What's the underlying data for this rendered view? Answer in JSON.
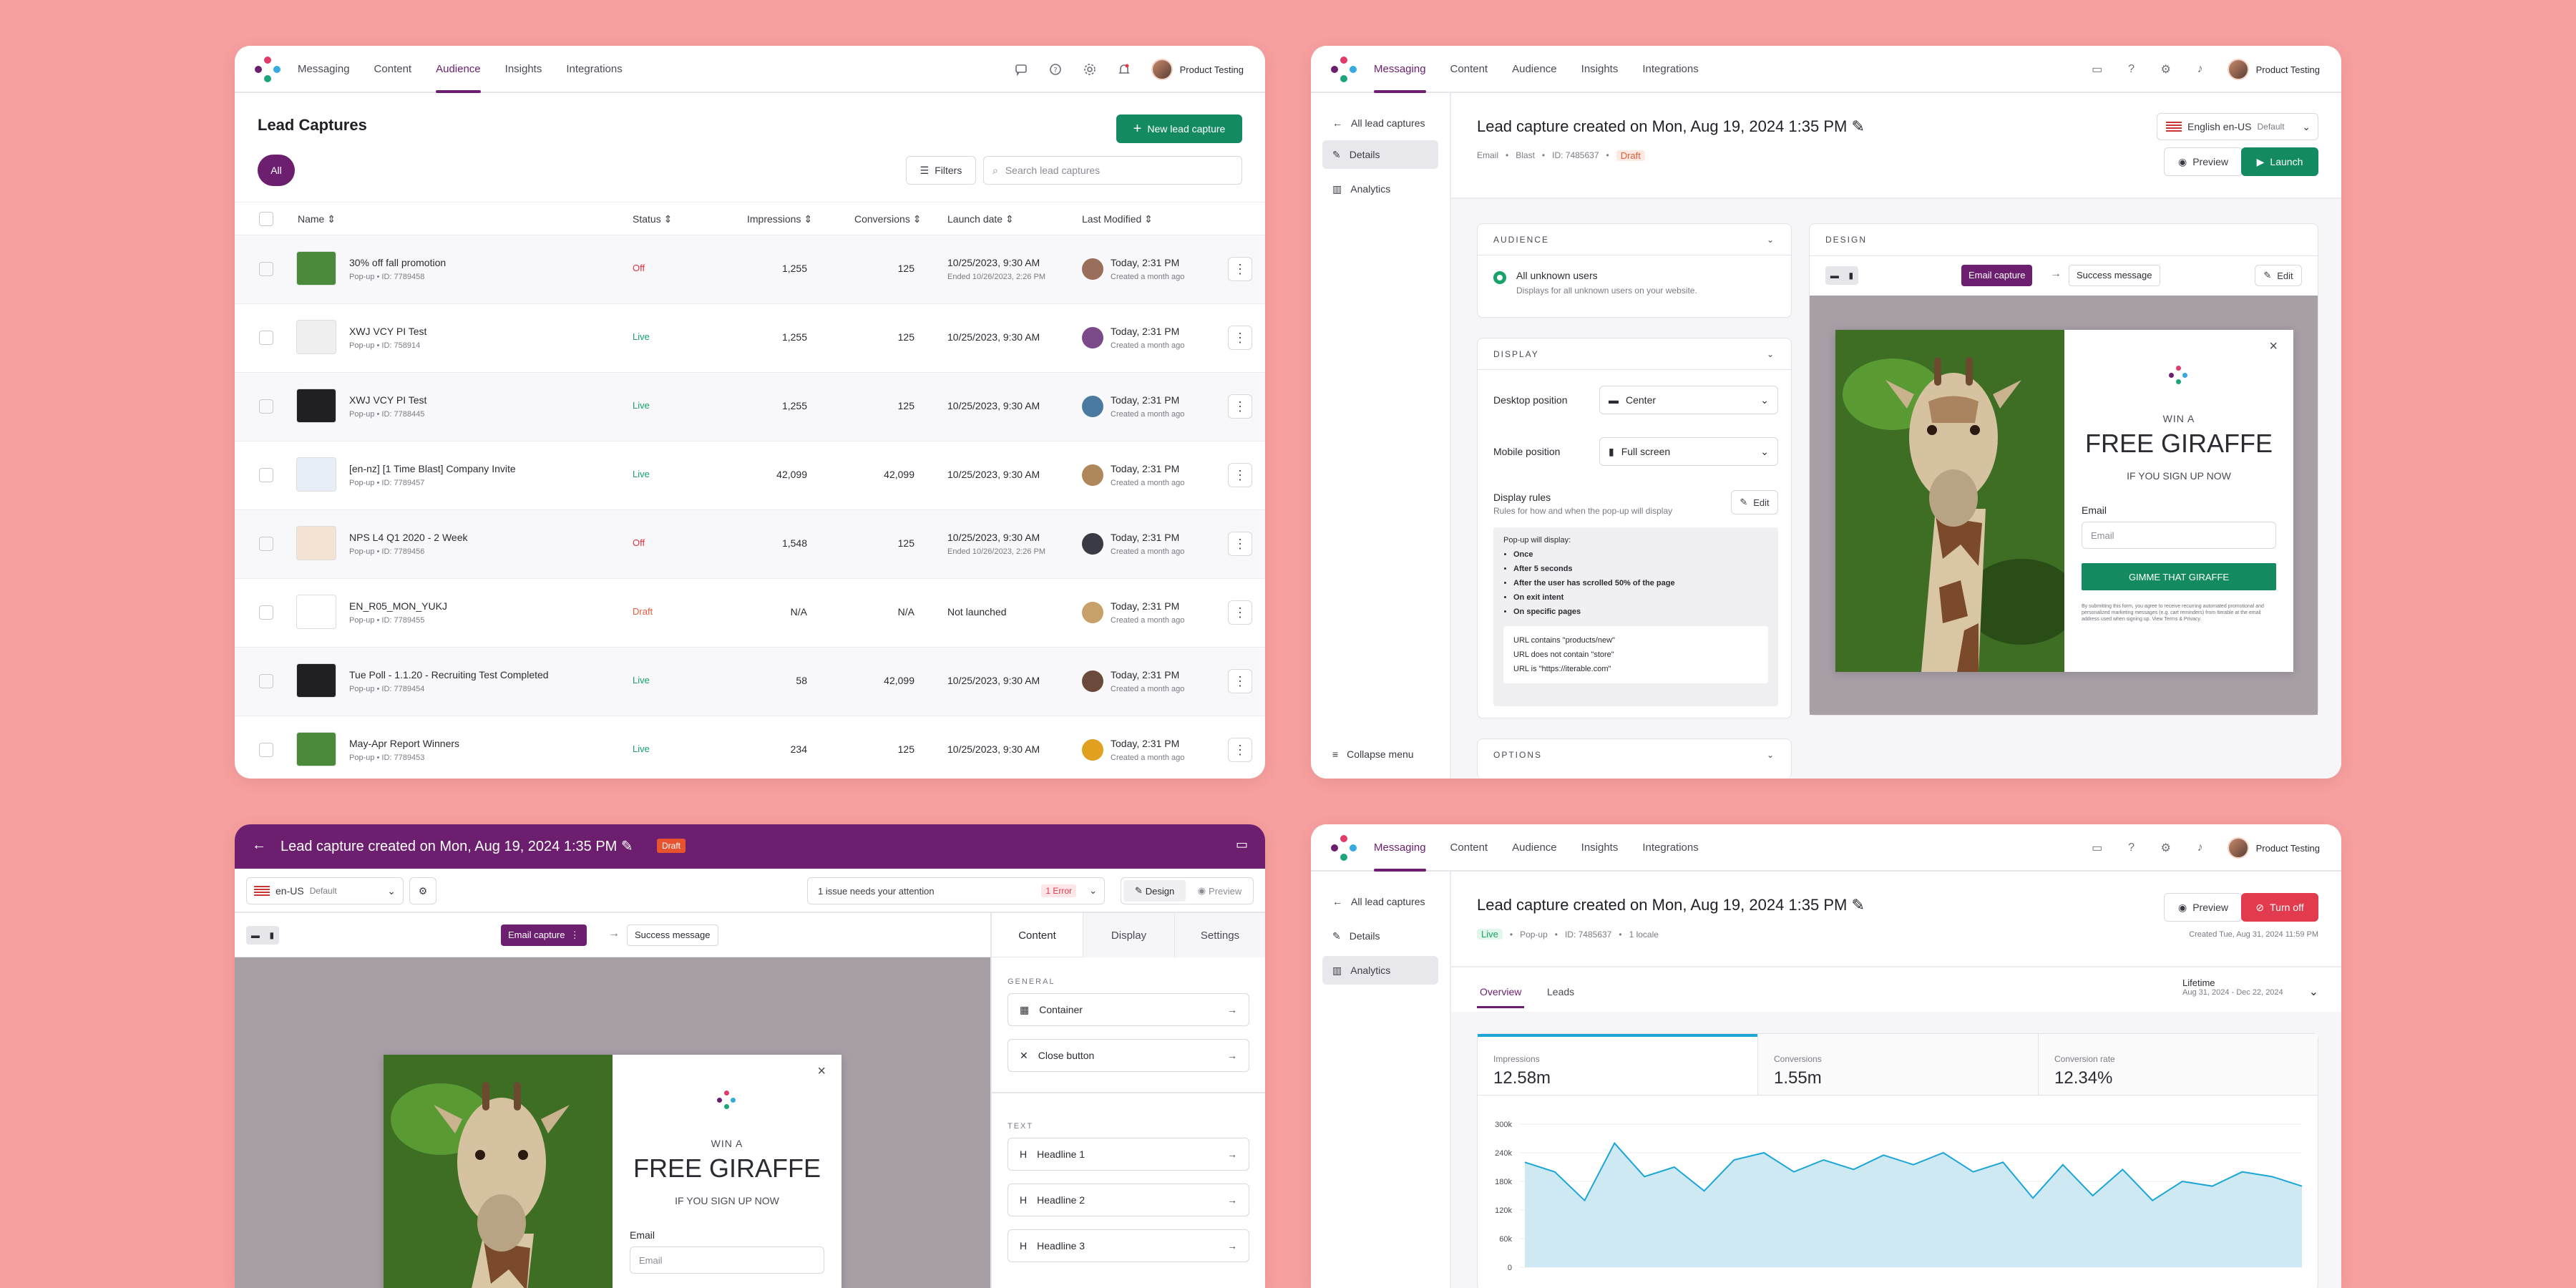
{
  "nav": {
    "items": [
      "Messaging",
      "Content",
      "Audience",
      "Insights",
      "Integrations"
    ],
    "user": "Product Testing"
  },
  "p1": {
    "title": "Lead Captures",
    "new_button": "New lead capture",
    "all_pill": "All",
    "filters": "Filters",
    "search_placeholder": "Search lead captures",
    "headers": [
      "Name",
      "Status",
      "Impressions",
      "Conversions",
      "Launch date",
      "Last Modified"
    ],
    "rows": [
      {
        "name": "30% off fall promotion",
        "sub": "Pop-up • ID: 7789458",
        "status": "Off",
        "imp": "1,255",
        "conv": "125",
        "launch": "10/25/2023, 9:30 AM",
        "ended": "Ended 10/26/2023, 2:26 PM",
        "mod": "Today, 2:31 PM",
        "created": "Created a month ago"
      },
      {
        "name": "XWJ VCY PI Test",
        "sub": "Pop-up • ID: 758914",
        "status": "Live",
        "imp": "1,255",
        "conv": "125",
        "launch": "10/25/2023, 9:30 AM",
        "ended": "",
        "mod": "Today, 2:31 PM",
        "created": "Created a month ago"
      },
      {
        "name": "XWJ VCY PI Test",
        "sub": "Pop-up • ID: 7788445",
        "status": "Live",
        "imp": "1,255",
        "conv": "125",
        "launch": "10/25/2023, 9:30 AM",
        "ended": "",
        "mod": "Today, 2:31 PM",
        "created": "Created a month ago"
      },
      {
        "name": "[en-nz] [1 Time Blast] Company Invite",
        "sub": "Pop-up • ID: 7789457",
        "status": "Live",
        "imp": "42,099",
        "conv": "42,099",
        "launch": "10/25/2023, 9:30 AM",
        "ended": "",
        "mod": "Today, 2:31 PM",
        "created": "Created a month ago"
      },
      {
        "name": "NPS L4 Q1 2020 - 2 Week",
        "sub": "Pop-up • ID: 7789456",
        "status": "Off",
        "imp": "1,548",
        "conv": "125",
        "launch": "10/25/2023, 9:30 AM",
        "ended": "Ended 10/26/2023, 2:26 PM",
        "mod": "Today, 2:31 PM",
        "created": "Created a month ago"
      },
      {
        "name": "EN_R05_MON_YUKJ",
        "sub": "Pop-up • ID: 7789455",
        "status": "Draft",
        "imp": "N/A",
        "conv": "N/A",
        "launch": "Not launched",
        "ended": "",
        "mod": "Today, 2:31 PM",
        "created": "Created a month ago"
      },
      {
        "name": "Tue Poll - 1.1.20 - Recruiting Test Completed",
        "sub": "Pop-up • ID: 7789454",
        "status": "Live",
        "imp": "58",
        "conv": "42,099",
        "launch": "10/25/2023, 9:30 AM",
        "ended": "",
        "mod": "Today, 2:31 PM",
        "created": "Created a month ago"
      },
      {
        "name": "May-Apr Report Winners",
        "sub": "Pop-up • ID: 7789453",
        "status": "Live",
        "imp": "234",
        "conv": "125",
        "launch": "10/25/2023, 9:30 AM",
        "ended": "",
        "mod": "Today, 2:31 PM",
        "created": "Created a month ago"
      }
    ]
  },
  "p2": {
    "back": "All lead captures",
    "side": [
      "Details",
      "Analytics"
    ],
    "collapse": "Collapse menu",
    "title": "Lead capture created on Mon, Aug 19, 2024 1:35 PM",
    "meta": [
      "Email",
      "Blast",
      "ID: 7485637"
    ],
    "draft": "Draft",
    "locale": "English en-US",
    "locale_default": "Default",
    "preview": "Preview",
    "launch": "Launch",
    "audience_head": "AUDIENCE",
    "aud_option": "All unknown users",
    "aud_desc": "Displays for all unknown users on your website.",
    "display_head": "DISPLAY",
    "desktop_label": "Desktop position",
    "desktop_val": "Center",
    "mobile_label": "Mobile position",
    "mobile_val": "Full screen",
    "rules_label": "Display rules",
    "rules_desc": "Rules for how and when the pop-up will display",
    "edit": "Edit",
    "rules_intro": "Pop-up will display:",
    "rules": [
      "Once",
      "After 5 seconds",
      "After the user has scrolled 50% of the page",
      "On exit intent",
      "On specific pages"
    ],
    "urls": [
      "URL contains \"products/new\"",
      "URL does not contain \"store\"",
      "URL is \"https://iterable.com\""
    ],
    "options_head": "OPTIONS",
    "design_head": "DESIGN",
    "email_capture": "Email capture",
    "success": "Success message"
  },
  "popup": {
    "win": "WIN A",
    "headline": "FREE GIRAFFE",
    "sub": "IF YOU SIGN UP NOW",
    "email_label": "Email",
    "email_placeholder": "Email",
    "cta": "GIMME THAT GIRAFFE",
    "legal": "By submitting this form, you agree to receive recurring automated promotional and personalized marketing messages (e.g. cart reminders) from Iterable at the email address used when signing up. View Terms & Privacy."
  },
  "p3": {
    "title": "Lead capture created on Mon, Aug 19, 2024 1:35 PM",
    "draft": "Draft",
    "locale": "en-US",
    "locale_default": "Default",
    "issue": "1 issue needs your attention",
    "error": "1 Error",
    "design": "Design",
    "preview": "Preview",
    "email_capture": "Email capture",
    "success": "Success message",
    "tabs": [
      "Content",
      "Display",
      "Settings"
    ],
    "general": "GENERAL",
    "container": "Container",
    "close_button": "Close button",
    "text": "TEXT",
    "headlines": [
      "Headline 1",
      "Headline 2",
      "Headline 3"
    ]
  },
  "p4": {
    "back": "All lead captures",
    "side": [
      "Details",
      "Analytics"
    ],
    "title": "Lead capture created on Mon, Aug 19, 2024 1:35 PM",
    "live": "Live",
    "meta": [
      "Pop-up",
      "ID: 7485637",
      "1 locale"
    ],
    "preview": "Preview",
    "turnoff": "Turn off",
    "created": "Created Tue, Aug 31, 2024 11:59 PM",
    "tabs": [
      "Overview",
      "Leads"
    ],
    "range_label": "Lifetime",
    "range": "Aug 31, 2024 - Dec 22, 2024",
    "kpis": [
      {
        "label": "Impressions",
        "value": "12.58m"
      },
      {
        "label": "Conversions",
        "value": "1.55m"
      },
      {
        "label": "Conversion rate",
        "value": "12.34%"
      }
    ]
  },
  "chart_data": {
    "type": "area",
    "yticks": [
      "300k",
      "240k",
      "180k",
      "120k",
      "60k",
      "0"
    ],
    "ylim": [
      0,
      300000
    ],
    "series": [
      {
        "values": [
          220000,
          200000,
          140000,
          260000,
          190000,
          210000,
          160000,
          225000,
          240000,
          200000,
          225000,
          205000,
          235000,
          215000,
          240000,
          200000,
          220000,
          145000,
          215000,
          150000,
          205000,
          140000,
          180000,
          170000,
          200000,
          190000,
          170000
        ]
      }
    ],
    "color": "#1ba6d6"
  },
  "colors": {
    "brand": "#6b1f6e",
    "green": "#138a60",
    "red": "#e13b4d"
  }
}
